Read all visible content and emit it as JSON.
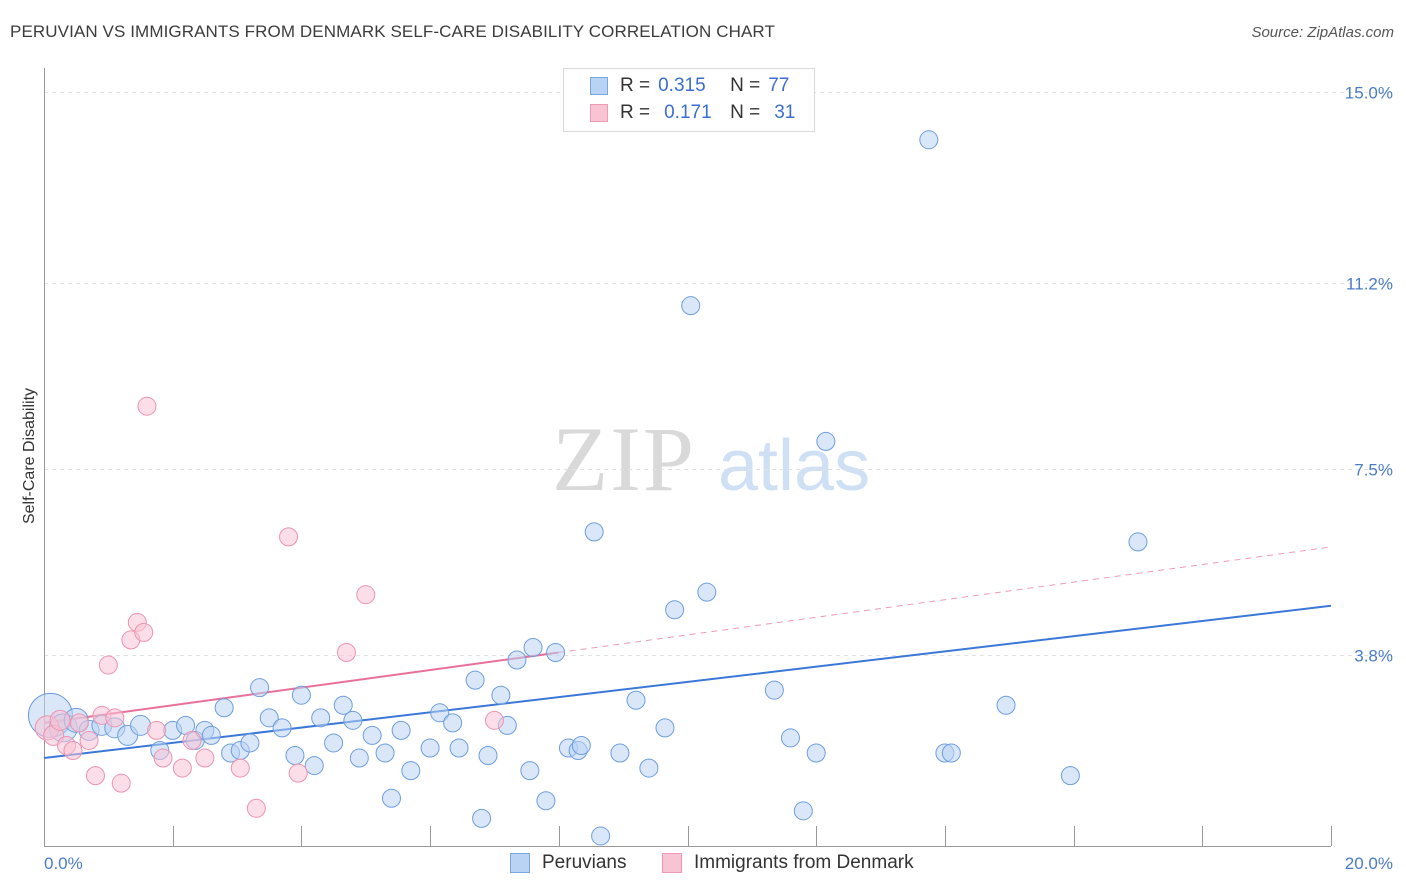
{
  "header": {
    "title": "PERUVIAN VS IMMIGRANTS FROM DENMARK SELF-CARE DISABILITY CORRELATION CHART",
    "source": "Source: ZipAtlas.com"
  },
  "watermark": {
    "zip": "ZIP",
    "atlas": "atlas"
  },
  "legend": {
    "row1": {
      "r_label": "R =",
      "r_value": "0.315",
      "n_label": "N =",
      "n_value": "77"
    },
    "row2": {
      "r_label": "R =",
      "r_value": "0.171",
      "n_label": "N =",
      "n_value": "31"
    }
  },
  "colors": {
    "blue": "#3b78d8",
    "blue_fill": "#b9d3f4",
    "pink": "#e8709a",
    "pink_fill": "#f8c3d3",
    "tick_text": "#4a7cc9"
  },
  "chart_data": {
    "type": "scatter",
    "xlabel": "",
    "ylabel": "Self-Care Disability",
    "xlim": [
      0,
      20
    ],
    "ylim": [
      0,
      15.5
    ],
    "x_tick_labels": [
      "0.0%",
      "20.0%"
    ],
    "y_ticks": [
      3.8,
      7.5,
      11.2,
      15.0
    ],
    "y_tick_labels": [
      "3.8%",
      "7.5%",
      "11.2%",
      "15.0%"
    ],
    "grid": "horizontal-dashed",
    "legend_position": "top-center",
    "series": [
      {
        "name": "Peruvians",
        "color": "#3b78d8",
        "r": 0.315,
        "n": 77,
        "trend": {
          "x": [
            0,
            20
          ],
          "y": [
            1.75,
            4.78
          ],
          "style": "solid"
        },
        "points": [
          [
            0.1,
            2.6,
            22
          ],
          [
            0.3,
            2.35,
            14
          ],
          [
            0.5,
            2.5,
            12
          ],
          [
            0.7,
            2.3,
            10
          ],
          [
            0.9,
            2.4,
            10
          ],
          [
            1.1,
            2.35,
            10
          ],
          [
            1.3,
            2.2,
            10
          ],
          [
            1.5,
            2.4,
            10
          ],
          [
            1.8,
            1.9,
            9
          ],
          [
            2.0,
            2.3,
            9
          ],
          [
            2.2,
            2.4,
            9
          ],
          [
            2.35,
            2.1,
            9
          ],
          [
            2.5,
            2.3,
            9
          ],
          [
            2.6,
            2.2,
            9
          ],
          [
            2.8,
            2.75,
            9
          ],
          [
            2.9,
            1.85,
            9
          ],
          [
            3.05,
            1.9,
            9
          ],
          [
            3.2,
            2.05,
            9
          ],
          [
            3.35,
            3.15,
            9
          ],
          [
            3.5,
            2.55,
            9
          ],
          [
            3.7,
            2.35,
            9
          ],
          [
            3.9,
            1.8,
            9
          ],
          [
            4.0,
            3.0,
            9
          ],
          [
            4.2,
            1.6,
            9
          ],
          [
            4.3,
            2.55,
            9
          ],
          [
            4.5,
            2.05,
            9
          ],
          [
            4.65,
            2.8,
            9
          ],
          [
            4.8,
            2.5,
            9
          ],
          [
            4.9,
            1.75,
            9
          ],
          [
            5.1,
            2.2,
            9
          ],
          [
            5.3,
            1.85,
            9
          ],
          [
            5.4,
            0.95,
            9
          ],
          [
            5.55,
            2.3,
            9
          ],
          [
            5.7,
            1.5,
            9
          ],
          [
            6.0,
            1.95,
            9
          ],
          [
            6.15,
            2.65,
            9
          ],
          [
            6.35,
            2.45,
            9
          ],
          [
            6.45,
            1.95,
            9
          ],
          [
            6.7,
            3.3,
            9
          ],
          [
            6.8,
            0.55,
            9
          ],
          [
            6.9,
            1.8,
            9
          ],
          [
            7.1,
            3.0,
            9
          ],
          [
            7.2,
            2.4,
            9
          ],
          [
            7.35,
            3.7,
            9
          ],
          [
            7.6,
            3.95,
            9
          ],
          [
            7.55,
            1.5,
            9
          ],
          [
            7.8,
            0.9,
            9
          ],
          [
            7.95,
            3.85,
            9
          ],
          [
            8.15,
            1.95,
            9
          ],
          [
            8.3,
            1.9,
            9
          ],
          [
            8.35,
            2.0,
            9
          ],
          [
            8.55,
            6.25,
            9
          ],
          [
            8.65,
            0.2,
            9
          ],
          [
            8.95,
            1.85,
            9
          ],
          [
            9.2,
            2.9,
            9
          ],
          [
            9.4,
            1.55,
            9
          ],
          [
            9.65,
            2.35,
            9
          ],
          [
            9.8,
            4.7,
            9
          ],
          [
            10.05,
            10.75,
            9
          ],
          [
            10.3,
            5.05,
            9
          ],
          [
            11.35,
            3.1,
            9
          ],
          [
            11.6,
            2.15,
            9
          ],
          [
            11.8,
            0.7,
            9
          ],
          [
            12.0,
            1.85,
            9
          ],
          [
            12.15,
            8.05,
            9
          ],
          [
            13.75,
            14.05,
            9
          ],
          [
            14.0,
            1.85,
            9
          ],
          [
            14.1,
            1.85,
            9
          ],
          [
            14.95,
            2.8,
            9
          ],
          [
            15.95,
            1.4,
            9
          ],
          [
            17.0,
            6.05,
            9
          ]
        ]
      },
      {
        "name": "Immigrants from Denmark",
        "color": "#e8709a",
        "r": 0.171,
        "n": 31,
        "trend": {
          "x": [
            0,
            8.0
          ],
          "y": [
            2.45,
            3.85
          ],
          "style": "solid"
        },
        "trend_extension": {
          "x": [
            8.0,
            20
          ],
          "y": [
            3.85,
            5.95
          ],
          "style": "dashed"
        },
        "points": [
          [
            0.05,
            2.35,
            12
          ],
          [
            0.15,
            2.2,
            10
          ],
          [
            0.25,
            2.5,
            10
          ],
          [
            0.35,
            2.0,
            9
          ],
          [
            0.45,
            1.9,
            9
          ],
          [
            0.55,
            2.45,
            9
          ],
          [
            0.7,
            2.1,
            9
          ],
          [
            0.8,
            1.4,
            9
          ],
          [
            0.9,
            2.6,
            9
          ],
          [
            1.0,
            3.6,
            9
          ],
          [
            1.1,
            2.55,
            9
          ],
          [
            1.2,
            1.25,
            9
          ],
          [
            1.35,
            4.1,
            9
          ],
          [
            1.45,
            4.45,
            9
          ],
          [
            1.55,
            4.25,
            9
          ],
          [
            1.6,
            8.75,
            9
          ],
          [
            1.75,
            2.3,
            9
          ],
          [
            1.85,
            1.75,
            9
          ],
          [
            2.15,
            1.55,
            9
          ],
          [
            2.3,
            2.1,
            9
          ],
          [
            2.5,
            1.75,
            9
          ],
          [
            3.05,
            1.55,
            9
          ],
          [
            3.3,
            0.75,
            9
          ],
          [
            3.8,
            6.15,
            9
          ],
          [
            3.95,
            1.45,
            9
          ],
          [
            4.7,
            3.85,
            9
          ],
          [
            5.0,
            5.0,
            9
          ],
          [
            7.0,
            2.5,
            9
          ]
        ]
      }
    ]
  },
  "bottom_legend": {
    "item1": "Peruvians",
    "item2": "Immigrants from Denmark"
  }
}
